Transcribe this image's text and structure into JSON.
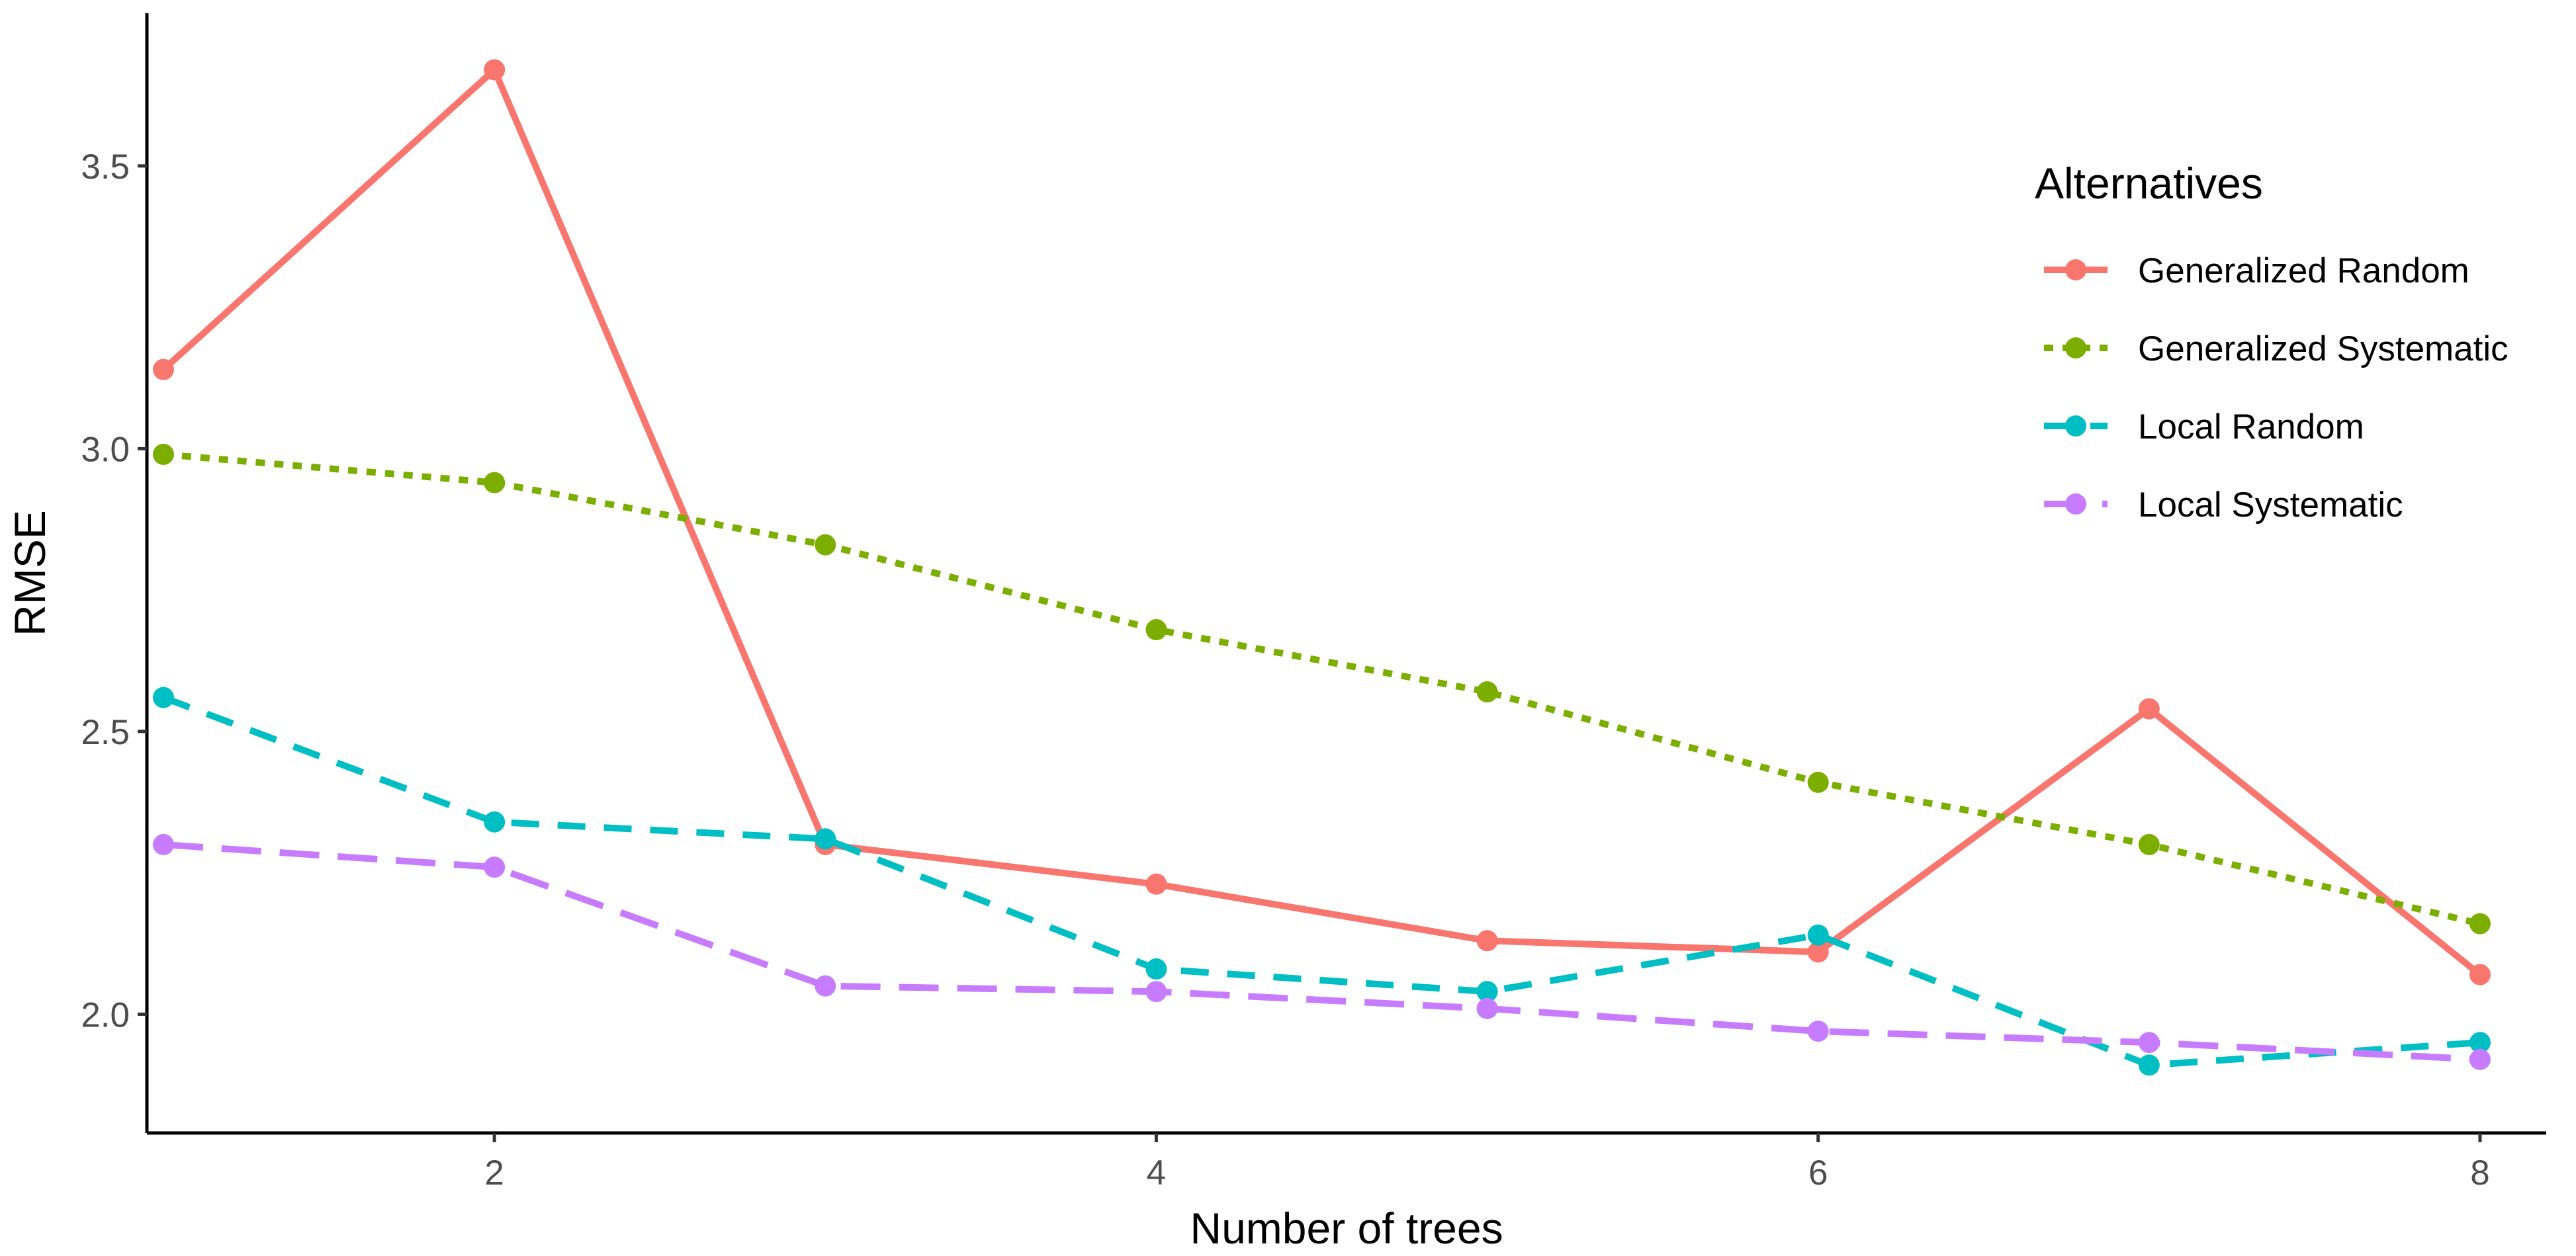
{
  "chart_data": {
    "type": "line",
    "title": "",
    "xlabel": "Number of trees",
    "ylabel": "RMSE",
    "xlim": [
      0.95,
      8.2
    ],
    "ylim": [
      1.79,
      3.77
    ],
    "x_ticks": [
      2,
      4,
      6,
      8
    ],
    "x_tick_labels": [
      "2",
      "4",
      "6",
      "8"
    ],
    "y_ticks": [
      2.0,
      2.5,
      3.0,
      3.5
    ],
    "y_tick_labels": [
      "2.0",
      "2.5",
      "3.0",
      "3.5"
    ],
    "grid": false,
    "legend": {
      "title": "Alternatives",
      "placement": "top-right"
    },
    "x": [
      1,
      2,
      3,
      4,
      5,
      6,
      7,
      8
    ],
    "series": [
      {
        "name": "Generalized Random",
        "color": "#F8766D",
        "dash": "solid",
        "values": [
          3.14,
          3.67,
          2.3,
          2.23,
          2.13,
          2.11,
          2.54,
          2.07
        ]
      },
      {
        "name": "Generalized Systematic",
        "color": "#7CAE00",
        "dash": "dotted",
        "values": [
          2.99,
          2.94,
          2.83,
          2.68,
          2.57,
          2.41,
          2.3,
          2.16
        ]
      },
      {
        "name": "Local Random",
        "color": "#00BFC4",
        "dash": "dashed",
        "values": [
          2.56,
          2.34,
          2.31,
          2.08,
          2.04,
          2.14,
          1.91,
          1.95
        ]
      },
      {
        "name": "Local Systematic",
        "color": "#C77CFF",
        "dash": "longdash",
        "values": [
          2.3,
          2.26,
          2.05,
          2.04,
          2.01,
          1.97,
          1.95,
          1.92
        ]
      }
    ]
  }
}
